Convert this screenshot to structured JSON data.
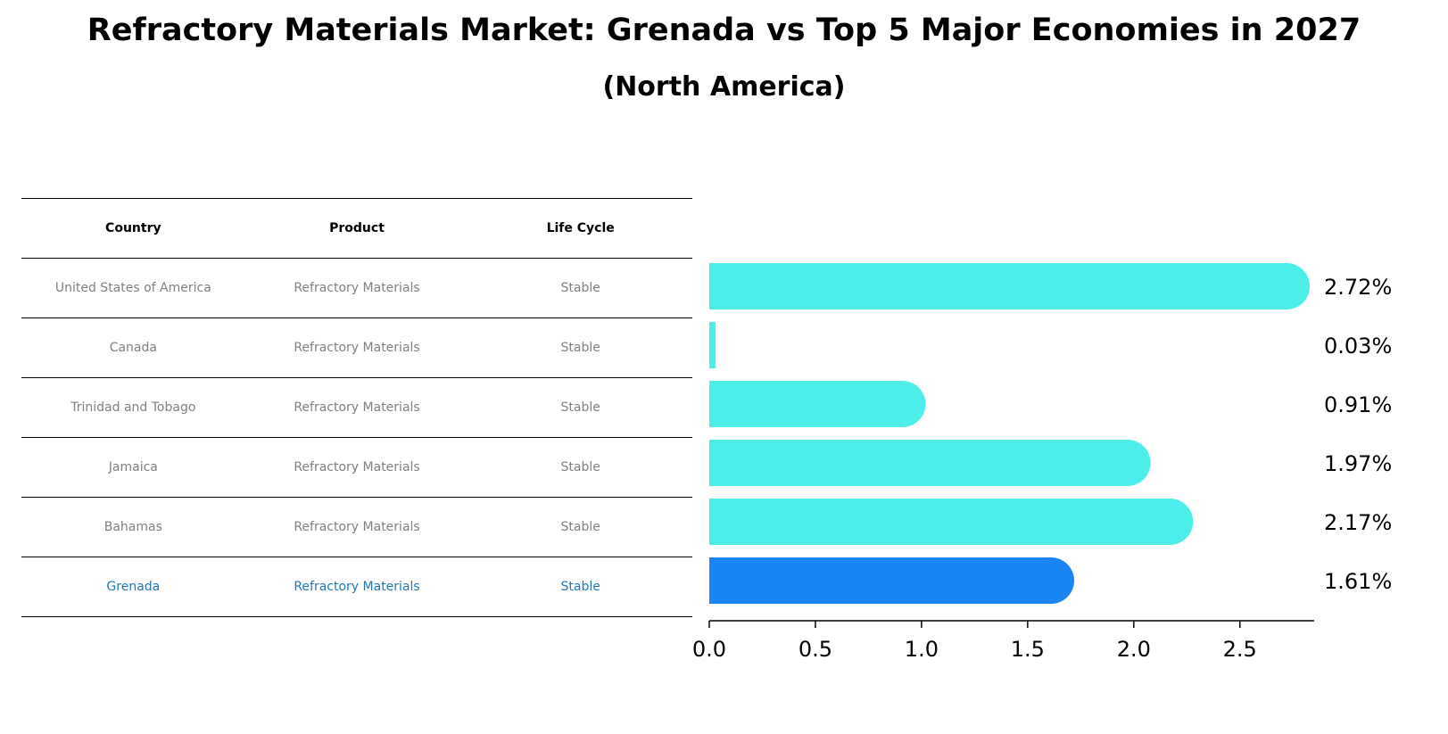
{
  "title": "Refractory Materials Market: Grenada vs Top 5 Major Economies in 2027",
  "subtitle": "(North America)",
  "table": {
    "headers": [
      "Country",
      "Product",
      "Life Cycle"
    ],
    "rows": [
      [
        "United States of America",
        "Refractory Materials",
        "Stable"
      ],
      [
        "Canada",
        "Refractory Materials",
        "Stable"
      ],
      [
        "Trinidad and Tobago",
        "Refractory Materials",
        "Stable"
      ],
      [
        "Jamaica",
        "Refractory Materials",
        "Stable"
      ],
      [
        "Bahamas",
        "Refractory Materials",
        "Stable"
      ],
      [
        "Grenada",
        "Refractory Materials",
        "Stable"
      ]
    ],
    "highlight_row": 5
  },
  "chart_data": {
    "type": "bar",
    "orientation": "horizontal",
    "categories": [
      "United States of America",
      "Canada",
      "Trinidad and Tobago",
      "Jamaica",
      "Bahamas",
      "Grenada"
    ],
    "values": [
      2.72,
      0.03,
      0.91,
      1.97,
      2.17,
      1.61
    ],
    "value_labels": [
      "2.72%",
      "0.03%",
      "0.91%",
      "1.97%",
      "2.17%",
      "1.61%"
    ],
    "xlim": [
      0,
      2.85
    ],
    "xticks": [
      0.0,
      0.5,
      1.0,
      1.5,
      2.0,
      2.5
    ],
    "xtick_labels": [
      "0.0",
      "0.5",
      "1.0",
      "1.5",
      "2.0",
      "2.5"
    ],
    "colors": {
      "default": "#4DEEEA",
      "highlight": "#1A85F5"
    },
    "highlight_index": 5
  }
}
